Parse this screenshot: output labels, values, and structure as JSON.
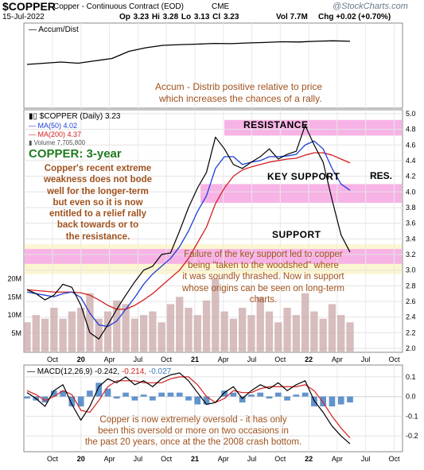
{
  "header": {
    "symbol": "$COPPER",
    "name": "Copper - Continuous Contract (EOD)",
    "exchange": "CME",
    "date": "15-Jul-2022",
    "ohlc": "Op 3.23  Hi 3.28  Lo 3.13  Cl 3.23",
    "volume": "Vol 7.7M",
    "change": "Chg +0.02 (+0.70%)",
    "watermark": "@StockCharts.com"
  },
  "colors": {
    "price": "#000000",
    "ma50": "#1f3fd8",
    "ma200": "#d42020",
    "volume": "#c9a7a7",
    "band_pink": "#f7b3e6",
    "band_yellow": "#fbf6d0",
    "annotation": "#a0521e",
    "label_green": "#1f7a1f",
    "macd_hist": "#3a78c0"
  },
  "panel_accum": {
    "legend": "— Accum/Dist",
    "note_line1": "Accum - Distrib positive relative to price",
    "note_line2": "which increases the chances of a rally."
  },
  "panel_price": {
    "legend_symbol": "$COPPER (Daily) 3.23",
    "legend_ma50": "MA(50) 4.02",
    "legend_ma200": "MA(200) 4.37",
    "legend_volume": "Volume 7,705,800",
    "title": "COPPER: 3-year",
    "comment": [
      "Copper's recent extreme",
      "weakness does not bode",
      "well for the longer-term",
      "but even so it is now",
      "entitled to a relief rally",
      "back towards or to",
      "the resistance."
    ],
    "label_resistance": "RESISTANCE",
    "label_key_support": "KEY SUPPORT",
    "label_res": "RES.",
    "label_support": "SUPPORT",
    "failure_note": [
      "Failure of the key support led to copper",
      "being \"taken to the woodshed\" where",
      "it was soundly thrashed. Now in support",
      "whose origins can be seen on long-term",
      "charts."
    ]
  },
  "panel_macd": {
    "legend_label": "MACD(12,26,9)",
    "legend_macd": "-0.242,",
    "legend_signal": "-0.214,",
    "legend_hist": "-0.027",
    "note": [
      "Copper is now extremely oversold - it has only",
      "been this oversold or more on two occasions in",
      "the past 20 years, once at the the 2008 crash bottom."
    ]
  },
  "x_axis": {
    "ticks": [
      "Oct",
      "20",
      "Apr",
      "Jul",
      "Oct",
      "21",
      "Apr",
      "Jul",
      "Oct",
      "22",
      "Apr",
      "Jul",
      "Oct"
    ]
  },
  "chart_data": [
    {
      "type": "line",
      "series": [
        {
          "values": [
            0.0,
            0.05,
            0.1,
            0.05,
            0.15,
            0.25,
            0.55,
            0.7,
            0.8,
            0.83,
            0.85,
            0.88,
            0.87,
            0.9,
            0.92,
            0.95,
            0.94,
            0.97,
            0.99,
            0.97
          ]
        }
      ],
      "grid": true
    },
    {
      "type": "line",
      "y_ticks": [
        "5.0",
        "4.8",
        "4.6",
        "4.4",
        "4.2",
        "4.0",
        "3.8",
        "3.6",
        "3.4",
        "3.2",
        "3.0",
        "2.8",
        "2.6",
        "2.4",
        "2.2",
        "2.0"
      ],
      "ylim": [
        1.95,
        5.05
      ],
      "volume_ticks": [
        "20M",
        "15M",
        "10M",
        "5M"
      ],
      "series": [
        {
          "name": "$COPPER (Daily) 3.23",
          "values": [
            2.75,
            2.7,
            2.62,
            2.68,
            2.82,
            2.78,
            2.55,
            2.2,
            2.12,
            2.3,
            2.5,
            2.68,
            2.85,
            3.0,
            3.05,
            3.2,
            3.22,
            3.5,
            3.8,
            4.05,
            4.25,
            4.7,
            4.55,
            4.35,
            4.3,
            4.38,
            4.45,
            4.55,
            4.42,
            4.48,
            4.52,
            4.85,
            4.6,
            4.38,
            3.9,
            3.45,
            3.23
          ]
        },
        {
          "name": "MA(50) 4.02",
          "values": [
            2.72,
            2.7,
            2.68,
            2.66,
            2.7,
            2.72,
            2.65,
            2.45,
            2.3,
            2.28,
            2.35,
            2.5,
            2.65,
            2.82,
            2.95,
            3.05,
            3.15,
            3.3,
            3.5,
            3.75,
            3.95,
            4.3,
            4.45,
            4.45,
            4.35,
            4.38,
            4.4,
            4.45,
            4.45,
            4.46,
            4.48,
            4.6,
            4.65,
            4.55,
            4.3,
            4.1,
            4.02
          ]
        },
        {
          "name": "MA(200) 4.37",
          "values": [
            2.75,
            2.74,
            2.73,
            2.72,
            2.72,
            2.72,
            2.71,
            2.68,
            2.62,
            2.55,
            2.5,
            2.5,
            2.55,
            2.62,
            2.7,
            2.8,
            2.9,
            3.0,
            3.15,
            3.35,
            3.55,
            3.85,
            4.05,
            4.2,
            4.28,
            4.32,
            4.35,
            4.38,
            4.4,
            4.42,
            4.43,
            4.47,
            4.5,
            4.5,
            4.47,
            4.42,
            4.37
          ]
        }
      ],
      "volume": [
        8,
        10,
        9,
        12,
        9,
        11,
        12,
        16,
        9,
        11,
        14,
        13,
        9,
        10,
        11,
        8,
        13,
        15,
        12,
        10,
        14,
        20,
        11,
        9,
        12,
        10,
        15,
        11,
        8,
        12,
        10,
        16,
        11,
        9,
        13,
        10,
        8
      ]
    },
    {
      "type": "line",
      "y_ticks": [
        "0.1",
        "0.0",
        "-0.1",
        "-0.2"
      ],
      "ylim": [
        -0.28,
        0.16
      ],
      "series": [
        {
          "name": "MACD(12,26,9)",
          "values": [
            0.02,
            -0.01,
            -0.05,
            0.03,
            0.06,
            -0.04,
            -0.12,
            -0.05,
            0.05,
            0.09,
            0.07,
            0.1,
            0.06,
            0.08,
            0.05,
            0.09,
            0.11,
            0.12,
            0.08,
            0.02,
            -0.04,
            -0.03,
            0.02,
            0.05,
            -0.01,
            0.03,
            0.06,
            0.04,
            0.07,
            0.03,
            0.06,
            0.08,
            -0.02,
            -0.08,
            -0.15,
            -0.2,
            -0.24
          ]
        },
        {
          "name": "signal",
          "values": [
            0.03,
            0.01,
            -0.02,
            0.0,
            0.03,
            0.01,
            -0.07,
            -0.08,
            -0.02,
            0.05,
            0.08,
            0.08,
            0.08,
            0.07,
            0.07,
            0.07,
            0.09,
            0.1,
            0.1,
            0.06,
            0.0,
            -0.03,
            -0.01,
            0.03,
            0.02,
            0.02,
            0.04,
            0.05,
            0.05,
            0.05,
            0.05,
            0.06,
            0.03,
            -0.03,
            -0.1,
            -0.16,
            -0.21
          ]
        },
        {
          "name": "histogram",
          "values": [
            -0.01,
            -0.02,
            -0.03,
            0.03,
            0.03,
            -0.05,
            -0.05,
            0.03,
            0.07,
            0.04,
            -0.01,
            0.02,
            -0.02,
            0.01,
            -0.02,
            0.02,
            0.02,
            0.02,
            -0.02,
            -0.04,
            -0.04,
            0.0,
            0.03,
            0.02,
            -0.03,
            0.01,
            0.02,
            -0.01,
            0.02,
            -0.02,
            0.01,
            0.02,
            -0.05,
            -0.05,
            -0.05,
            -0.04,
            -0.03
          ]
        }
      ]
    }
  ]
}
